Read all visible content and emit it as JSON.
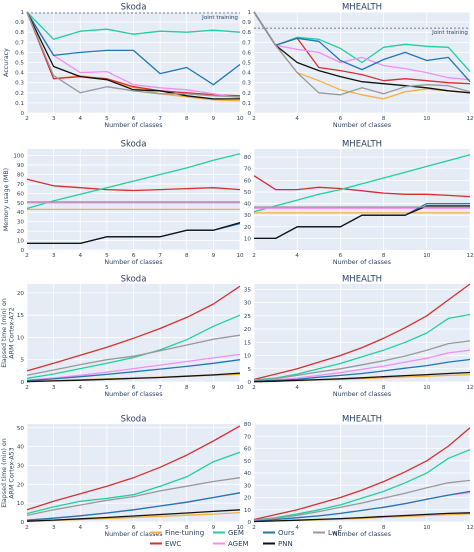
{
  "chart_data": [
    {
      "type": "line",
      "title": "Skoda",
      "xlabel": "Number of classes",
      "ylabel": "Accuracy",
      "x": [
        2,
        3,
        4,
        5,
        6,
        7,
        8,
        9,
        10
      ],
      "xlim": [
        2,
        10
      ],
      "ylim": [
        0,
        1
      ],
      "xticks": [
        2,
        3,
        4,
        5,
        6,
        7,
        8,
        9,
        10
      ],
      "yticks": [
        0,
        0.1,
        0.2,
        0.3,
        0.4,
        0.5,
        0.6,
        0.7,
        0.8,
        0.9,
        1
      ],
      "annotation": {
        "text": "Joint training",
        "y": 0.99
      },
      "series": [
        {
          "name": "Fine-tuning",
          "values": [
            1.0,
            0.34,
            0.37,
            0.33,
            0.25,
            0.19,
            0.16,
            0.13,
            0.12
          ]
        },
        {
          "name": "EWC",
          "values": [
            1.0,
            0.34,
            0.36,
            0.34,
            0.26,
            0.22,
            0.2,
            0.18,
            0.17
          ]
        },
        {
          "name": "GEM",
          "values": [
            1.0,
            0.73,
            0.81,
            0.83,
            0.78,
            0.81,
            0.8,
            0.82,
            0.8
          ]
        },
        {
          "name": "AGEM",
          "values": [
            1.0,
            0.57,
            0.4,
            0.41,
            0.28,
            0.25,
            0.23,
            0.19,
            0.15
          ]
        },
        {
          "name": "Ours",
          "values": [
            1.0,
            0.57,
            0.6,
            0.62,
            0.62,
            0.39,
            0.45,
            0.28,
            0.48
          ]
        },
        {
          "name": "PNN",
          "values": [
            1.0,
            0.46,
            0.36,
            0.33,
            0.23,
            0.22,
            0.17,
            0.14,
            0.14
          ]
        },
        {
          "name": "LwF",
          "values": [
            1.0,
            0.37,
            0.2,
            0.26,
            0.22,
            0.19,
            0.19,
            0.17,
            0.16
          ]
        }
      ]
    },
    {
      "type": "line",
      "title": "MHEALTH",
      "xlabel": "Number of classes",
      "ylabel": "",
      "x": [
        2,
        3,
        4,
        5,
        6,
        7,
        8,
        9,
        10,
        11,
        12
      ],
      "xlim": [
        2,
        12
      ],
      "ylim": [
        0,
        1
      ],
      "xticks": [
        2,
        4,
        6,
        8,
        10,
        12
      ],
      "yticks": [
        0,
        0.1,
        0.2,
        0.3,
        0.4,
        0.5,
        0.6,
        0.7,
        0.8,
        0.9,
        1
      ],
      "annotation": {
        "text": "Joint training",
        "y": 0.84
      },
      "series": [
        {
          "name": "Fine-tuning",
          "values": [
            1.0,
            0.67,
            0.4,
            0.32,
            0.23,
            0.18,
            0.14,
            0.21,
            0.24,
            0.22,
            0.2
          ]
        },
        {
          "name": "EWC",
          "values": [
            1.0,
            0.67,
            0.74,
            0.45,
            0.42,
            0.38,
            0.32,
            0.34,
            0.32,
            0.3,
            0.29
          ]
        },
        {
          "name": "GEM",
          "values": [
            1.0,
            0.67,
            0.75,
            0.73,
            0.64,
            0.5,
            0.65,
            0.68,
            0.66,
            0.65,
            0.41
          ]
        },
        {
          "name": "AGEM",
          "values": [
            1.0,
            0.67,
            0.63,
            0.6,
            0.5,
            0.55,
            0.47,
            0.44,
            0.4,
            0.35,
            0.33
          ]
        },
        {
          "name": "Ours",
          "values": [
            1.0,
            0.67,
            0.74,
            0.71,
            0.52,
            0.43,
            0.53,
            0.6,
            0.52,
            0.55,
            0.31
          ]
        },
        {
          "name": "PNN",
          "values": [
            1.0,
            0.67,
            0.5,
            0.42,
            0.36,
            0.31,
            0.29,
            0.27,
            0.25,
            0.22,
            0.2
          ]
        },
        {
          "name": "LwF",
          "values": [
            1.0,
            0.67,
            0.4,
            0.2,
            0.18,
            0.25,
            0.19,
            0.26,
            0.28,
            0.27,
            0.21
          ]
        }
      ]
    },
    {
      "type": "line",
      "title": "Skoda",
      "xlabel": "Number of classes",
      "ylabel": "Memory usage (MB)",
      "x": [
        2,
        3,
        4,
        5,
        6,
        7,
        8,
        9,
        10
      ],
      "xlim": [
        2,
        10
      ],
      "ylim": [
        0,
        107
      ],
      "xticks": [
        2,
        3,
        4,
        5,
        6,
        7,
        8,
        9,
        10
      ],
      "yticks": [
        0,
        10,
        20,
        30,
        40,
        50,
        60,
        70,
        80,
        90,
        100
      ],
      "series": [
        {
          "name": "Fine-tuning",
          "values": [
            43,
            43,
            43,
            43,
            43,
            43,
            43,
            43,
            43
          ]
        },
        {
          "name": "EWC",
          "values": [
            75,
            68,
            66,
            64,
            63,
            64,
            65,
            66,
            64
          ]
        },
        {
          "name": "GEM",
          "values": [
            44,
            52,
            59,
            66,
            73,
            80,
            87,
            95,
            102
          ]
        },
        {
          "name": "AGEM",
          "values": [
            50,
            50,
            50,
            50,
            50,
            50,
            50,
            50,
            50
          ]
        },
        {
          "name": "Ours",
          "values": [
            7,
            7,
            7,
            14,
            14,
            14,
            21,
            21,
            28
          ]
        },
        {
          "name": "PNN",
          "values": [
            7,
            7,
            7,
            14,
            14,
            14,
            21,
            21,
            29
          ]
        },
        {
          "name": "LwF",
          "values": [
            51,
            51,
            51,
            51,
            51,
            51,
            51,
            51,
            51
          ]
        }
      ]
    },
    {
      "type": "line",
      "title": "MHEALTH",
      "xlabel": "Number of classes",
      "ylabel": "",
      "x": [
        2,
        3,
        4,
        5,
        6,
        7,
        8,
        9,
        10,
        11,
        12
      ],
      "xlim": [
        2,
        12
      ],
      "ylim": [
        0,
        87
      ],
      "xticks": [
        2,
        4,
        6,
        8,
        10,
        12
      ],
      "yticks": [
        10,
        20,
        30,
        40,
        50,
        60,
        70,
        80
      ],
      "series": [
        {
          "name": "Fine-tuning",
          "values": [
            32,
            32,
            32,
            32,
            32,
            32,
            32,
            32,
            32,
            32,
            32
          ]
        },
        {
          "name": "EWC",
          "values": [
            64,
            52,
            52,
            54,
            53,
            51,
            49,
            48,
            48,
            47,
            46
          ]
        },
        {
          "name": "GEM",
          "values": [
            33,
            38,
            43,
            48,
            52,
            57,
            62,
            67,
            72,
            77,
            82
          ]
        },
        {
          "name": "AGEM",
          "values": [
            36,
            36,
            36,
            36,
            36,
            36,
            36,
            36,
            36,
            36,
            36
          ]
        },
        {
          "name": "Ours",
          "values": [
            10,
            10,
            20,
            20,
            20,
            30,
            30,
            30,
            40,
            40,
            40
          ]
        },
        {
          "name": "PNN",
          "values": [
            10,
            10,
            20,
            20,
            20,
            30,
            30,
            30,
            38,
            38,
            38
          ]
        },
        {
          "name": "LwF",
          "values": [
            37,
            37,
            37,
            37,
            37,
            37,
            37,
            37,
            37,
            37,
            37
          ]
        }
      ]
    },
    {
      "type": "line",
      "title": "Skoda",
      "xlabel": "Number of classes",
      "ylabel": "Elapsed time (min) on ARM Cortex-A72",
      "x": [
        2,
        3,
        4,
        5,
        6,
        7,
        8,
        9,
        10
      ],
      "xlim": [
        2,
        10
      ],
      "ylim": [
        0,
        22
      ],
      "xticks": [
        2,
        3,
        4,
        5,
        6,
        7,
        8,
        9,
        10
      ],
      "yticks": [
        0,
        5,
        10,
        15,
        20
      ],
      "series": [
        {
          "name": "Fine-tuning",
          "values": [
            0.1,
            0.3,
            0.5,
            0.7,
            0.9,
            1.1,
            1.3,
            1.5,
            1.7
          ]
        },
        {
          "name": "EWC",
          "values": [
            2.5,
            4.2,
            6.0,
            7.8,
            9.8,
            12.0,
            14.5,
            17.5,
            21.5
          ]
        },
        {
          "name": "GEM",
          "values": [
            0.8,
            1.8,
            3.0,
            4.2,
            5.5,
            7.2,
            9.5,
            12.5,
            15.0
          ]
        },
        {
          "name": "AGEM",
          "values": [
            0.4,
            0.9,
            1.5,
            2.2,
            3.0,
            3.8,
            4.6,
            5.4,
            6.2
          ]
        },
        {
          "name": "Ours",
          "values": [
            0.3,
            0.7,
            1.2,
            1.7,
            2.3,
            2.9,
            3.5,
            4.2,
            5.0
          ]
        },
        {
          "name": "PNN",
          "values": [
            0.1,
            0.25,
            0.4,
            0.6,
            0.8,
            1.0,
            1.3,
            1.6,
            2.0
          ]
        },
        {
          "name": "LwF",
          "values": [
            1.5,
            2.7,
            3.9,
            5.0,
            5.8,
            7.0,
            8.3,
            9.6,
            10.5
          ]
        }
      ]
    },
    {
      "type": "line",
      "title": "MHEALTH",
      "xlabel": "Number of classes",
      "ylabel": "",
      "x": [
        2,
        3,
        4,
        5,
        6,
        7,
        8,
        9,
        10,
        11,
        12
      ],
      "xlim": [
        2,
        12
      ],
      "ylim": [
        0,
        37
      ],
      "xticks": [
        2,
        4,
        6,
        8,
        10,
        12
      ],
      "yticks": [
        0,
        5,
        10,
        15,
        20,
        25,
        30,
        35
      ],
      "series": [
        {
          "name": "Fine-tuning",
          "values": [
            0.1,
            0.3,
            0.5,
            0.8,
            1.0,
            1.3,
            1.6,
            1.9,
            2.2,
            2.5,
            2.8
          ]
        },
        {
          "name": "EWC",
          "values": [
            1.0,
            3.0,
            5.0,
            7.5,
            10.0,
            13.0,
            16.5,
            20.5,
            25.0,
            31.0,
            37.0
          ]
        },
        {
          "name": "GEM",
          "values": [
            0.8,
            1.5,
            3.0,
            5.0,
            7.0,
            9.5,
            12.0,
            15.0,
            18.5,
            24.0,
            25.5
          ]
        },
        {
          "name": "AGEM",
          "values": [
            0.5,
            0.8,
            1.5,
            2.5,
            3.5,
            4.8,
            6.0,
            7.5,
            9.0,
            11.0,
            12.0
          ]
        },
        {
          "name": "Ours",
          "values": [
            0.3,
            0.6,
            1.0,
            1.8,
            2.5,
            3.2,
            4.2,
            5.2,
            6.2,
            7.5,
            8.5
          ]
        },
        {
          "name": "PNN",
          "values": [
            0.1,
            0.3,
            0.6,
            0.9,
            1.2,
            1.6,
            2.0,
            2.4,
            2.8,
            3.2,
            3.6
          ]
        },
        {
          "name": "LwF",
          "values": [
            0.7,
            1.3,
            2.5,
            3.8,
            5.0,
            6.5,
            8.0,
            9.8,
            12.0,
            14.5,
            15.5
          ]
        }
      ]
    },
    {
      "type": "line",
      "title": "Skoda",
      "xlabel": "Number of classes",
      "ylabel": "Elapsed time (min) on ARM Cortex-A53",
      "x": [
        2,
        3,
        4,
        5,
        6,
        7,
        8,
        9,
        10
      ],
      "xlim": [
        2,
        10
      ],
      "ylim": [
        0,
        52
      ],
      "xticks": [
        2,
        3,
        4,
        5,
        6,
        7,
        8,
        9,
        10
      ],
      "yticks": [
        0,
        10,
        20,
        30,
        40,
        50
      ],
      "series": [
        {
          "name": "Fine-tuning",
          "values": [
            0.3,
            0.8,
            1.3,
            1.8,
            2.4,
            3.0,
            3.6,
            4.2,
            5.0
          ]
        },
        {
          "name": "EWC",
          "values": [
            6.5,
            11.0,
            15.0,
            19.0,
            23.5,
            29.0,
            35.5,
            43.0,
            51.0
          ]
        },
        {
          "name": "GEM",
          "values": [
            4.5,
            8.0,
            11.0,
            12.5,
            14.5,
            19.0,
            24.0,
            32.0,
            37.0
          ]
        },
        {
          "name": "AGEM",
          "values": [
            1.0,
            2.0,
            3.3,
            4.8,
            6.5,
            8.5,
            10.5,
            13.0,
            15.5
          ]
        },
        {
          "name": "Ours",
          "values": [
            1.0,
            2.0,
            3.3,
            4.8,
            6.5,
            8.5,
            10.5,
            13.0,
            15.5
          ]
        },
        {
          "name": "PNN",
          "values": [
            0.4,
            1.0,
            1.7,
            2.4,
            3.2,
            4.0,
            4.8,
            5.6,
            6.5
          ]
        },
        {
          "name": "LwF",
          "values": [
            3.5,
            6.5,
            9.0,
            11.5,
            13.5,
            16.5,
            19.0,
            21.5,
            23.5
          ]
        }
      ]
    },
    {
      "type": "line",
      "title": "MHEALTH",
      "xlabel": "Number of classes",
      "ylabel": "",
      "x": [
        2,
        3,
        4,
        5,
        6,
        7,
        8,
        9,
        10,
        11,
        12
      ],
      "xlim": [
        2,
        12
      ],
      "ylim": [
        0,
        80
      ],
      "xticks": [
        2,
        4,
        6,
        8,
        10,
        12
      ],
      "yticks": [
        0,
        10,
        20,
        30,
        40,
        50,
        60,
        70,
        80
      ],
      "series": [
        {
          "name": "Fine-tuning",
          "values": [
            0.3,
            0.8,
            1.3,
            1.8,
            2.4,
            3.0,
            3.8,
            4.5,
            5.2,
            6.0,
            6.5
          ]
        },
        {
          "name": "EWC",
          "values": [
            2.0,
            6.0,
            10.0,
            15.0,
            20.0,
            26.0,
            33.0,
            41.0,
            50.0,
            62.0,
            77.0
          ]
        },
        {
          "name": "GEM",
          "values": [
            1.5,
            3.5,
            6.5,
            10.0,
            14.0,
            19.5,
            25.0,
            32.0,
            40.0,
            52.0,
            59.0
          ]
        },
        {
          "name": "AGEM",
          "values": [
            1.0,
            2.0,
            3.5,
            5.0,
            7.0,
            9.5,
            12.0,
            15.0,
            18.5,
            22.0,
            24.0
          ]
        },
        {
          "name": "Ours",
          "values": [
            1.0,
            2.0,
            3.5,
            5.0,
            7.0,
            9.5,
            12.0,
            15.0,
            18.5,
            22.0,
            25.0
          ]
        },
        {
          "name": "PNN",
          "values": [
            0.4,
            0.9,
            1.5,
            2.1,
            2.8,
            3.6,
            4.5,
            5.3,
            6.2,
            7.0,
            7.5
          ]
        },
        {
          "name": "LwF",
          "values": [
            1.5,
            3.0,
            5.5,
            8.5,
            12.0,
            15.5,
            19.5,
            23.5,
            28.0,
            32.0,
            34.0
          ]
        }
      ]
    }
  ],
  "legend": [
    {
      "name": "Fine-tuning",
      "color": "#f5b041"
    },
    {
      "name": "EWC",
      "color": "#d62f2f"
    },
    {
      "name": "GEM",
      "color": "#22cf9a"
    },
    {
      "name": "AGEM",
      "color": "#f08ef5"
    },
    {
      "name": "Ours",
      "color": "#1f77b4"
    },
    {
      "name": "PNN",
      "color": "#111111"
    },
    {
      "name": "LwF",
      "color": "#999999"
    }
  ],
  "colors": {
    "plot_bg": "#e5ecf6",
    "grid": "#ffffff",
    "axis_text": "#2a3f5f",
    "joint_line": "#555555"
  }
}
